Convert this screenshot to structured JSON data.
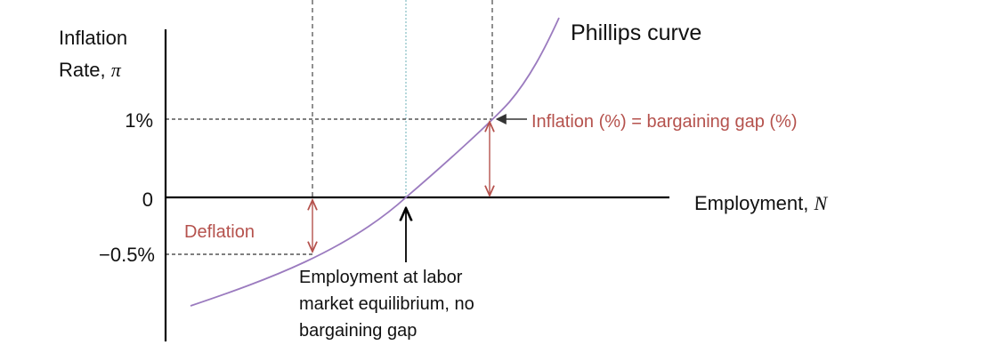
{
  "y_axis_label": {
    "line1": "Inflation",
    "line2": "Rate, ",
    "symbol": "π"
  },
  "x_axis_label": {
    "text": "Employment, ",
    "symbol": "N"
  },
  "ticks": {
    "one_percent": "1%",
    "zero": "0",
    "minus_half": "−0.5%"
  },
  "curve_label": "Phillips curve",
  "annotations": {
    "inflation_gap": "Inflation (%) = bargaining gap (%)",
    "deflation": "Deflation",
    "equilibrium": [
      "Employment at labor",
      "market equilibrium, no",
      "bargaining gap"
    ]
  },
  "colors": {
    "axis": "#000000",
    "curve": "#9b7bbf",
    "annotation": "#b5524d",
    "dashed": "#555555",
    "equilibrium_line": "#8fc3c8"
  }
}
